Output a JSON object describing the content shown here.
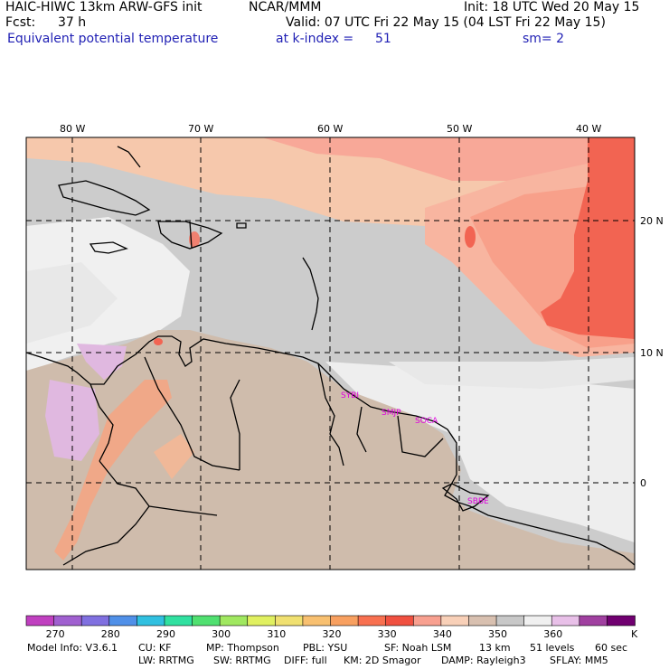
{
  "header": {
    "model": "HAIC-HIWC 13km ARW-GFS init",
    "org": "NCAR/MMM",
    "init": "Init: 18 UTC Wed 20 May 15",
    "fcst_label": "Fcst:",
    "fcst_value": "37 h",
    "valid": "Valid: 07 UTC Fri 22 May 15 (04 LST Fri 22 May 15)",
    "field": "Equivalent potential temperature",
    "level": "at k-index =",
    "level_value": "51",
    "smooth": "sm= 2"
  },
  "map": {
    "lon_labels": [
      "80 W",
      "70 W",
      "60 W",
      "50 W",
      "40 W"
    ],
    "lat_labels": [
      "20 N",
      "10 N",
      "0"
    ],
    "stations": [
      "SYBI",
      "SMJP",
      "SOCA",
      "SBBE"
    ],
    "station_color": "#e000e0"
  },
  "colorbar": {
    "colors": [
      "#c040c0",
      "#a060d0",
      "#8070e0",
      "#5090e8",
      "#30c0e0",
      "#30e0a0",
      "#50e070",
      "#a0e860",
      "#e0f060",
      "#f0e070",
      "#f8c070",
      "#f8a060",
      "#f87050",
      "#f05040",
      "#f8a090",
      "#f8d0b8",
      "#d8c0b0",
      "#c8c8c8",
      "#f0f0f0",
      "#e8c0e8",
      "#a040a0",
      "#700070"
    ],
    "ticks": [
      "270",
      "280",
      "290",
      "300",
      "310",
      "320",
      "330",
      "340",
      "350",
      "360"
    ],
    "unit": "K"
  },
  "footer": {
    "line1": [
      "Model Info: V3.6.1",
      "CU: KF",
      "MP: Thompson",
      "PBL: YSU",
      "SF: Noah LSM",
      "13 km",
      "51 levels",
      "60 sec"
    ],
    "line2": [
      "LW: RRTMG",
      "SW: RRTMG",
      "DIFF: full",
      "KM: 2D Smagor",
      "DAMP: Rayleigh3",
      "SFLAY: MM5"
    ]
  }
}
